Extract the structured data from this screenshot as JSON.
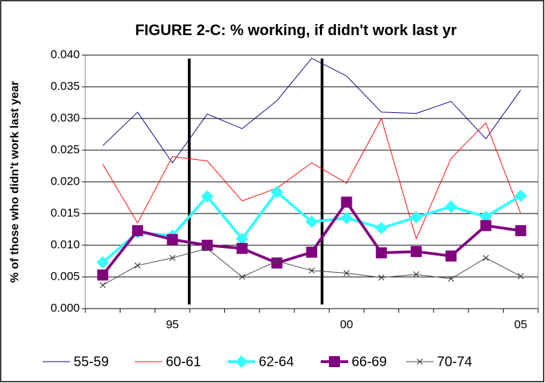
{
  "chart_data": {
    "type": "line",
    "title": "FIGURE 2-C:  % working, if didn't work last yr",
    "y_label": "% of those who didn't work last year",
    "categories": [
      null,
      null,
      "95",
      null,
      null,
      null,
      null,
      "00",
      null,
      null,
      null,
      null,
      "05"
    ],
    "ylim": [
      0,
      0.04
    ],
    "yticks": [
      {
        "value": 0,
        "label": "0.000"
      },
      {
        "value": 0.005,
        "label": "0.005"
      },
      {
        "value": 0.01,
        "label": "0.010"
      },
      {
        "value": 0.015,
        "label": "0.015"
      },
      {
        "value": 0.02,
        "label": "0.020"
      },
      {
        "value": 0.025,
        "label": "0.025"
      },
      {
        "value": 0.03,
        "label": "0.030"
      },
      {
        "value": 0.035,
        "label": "0.035"
      },
      {
        "value": 0.04,
        "label": "0.040"
      }
    ],
    "grid": true,
    "legend": "bottom",
    "series": [
      {
        "name": "55-59",
        "color": "#000080",
        "width": 1,
        "marker": "none",
        "values": [
          0.0257,
          0.031,
          0.023,
          0.0307,
          0.0284,
          0.0328,
          0.0395,
          0.0367,
          0.031,
          0.0308,
          0.0327,
          0.0268,
          0.0345
        ]
      },
      {
        "name": "60-61",
        "color": "#ff0000",
        "width": 1,
        "marker": "none",
        "values": [
          0.0228,
          0.0135,
          0.024,
          0.0233,
          0.017,
          0.019,
          0.023,
          0.0198,
          0.03,
          0.011,
          0.0237,
          0.0293,
          0.015
        ]
      },
      {
        "name": "62-64",
        "color": "#33ffff",
        "width": 4,
        "marker": "diamond",
        "values": [
          0.0073,
          0.012,
          0.0115,
          0.0177,
          0.011,
          0.0184,
          0.0137,
          0.0143,
          0.0127,
          0.0144,
          0.0161,
          0.0145,
          0.0178
        ]
      },
      {
        "name": "66-69",
        "color": "#800080",
        "width": 4,
        "marker": "square",
        "values": [
          0.0053,
          0.0123,
          0.0109,
          0.01,
          0.0095,
          0.0072,
          0.0089,
          0.0168,
          0.0088,
          0.009,
          0.0083,
          0.0131,
          0.0123
        ]
      },
      {
        "name": "70-74",
        "color": "#404040",
        "width": 1,
        "marker": "x",
        "values": [
          0.0037,
          0.0068,
          0.008,
          0.0095,
          0.005,
          0.0075,
          0.006,
          0.0056,
          0.0049,
          0.0054,
          0.0047,
          0.008,
          0.0051
        ]
      }
    ]
  }
}
